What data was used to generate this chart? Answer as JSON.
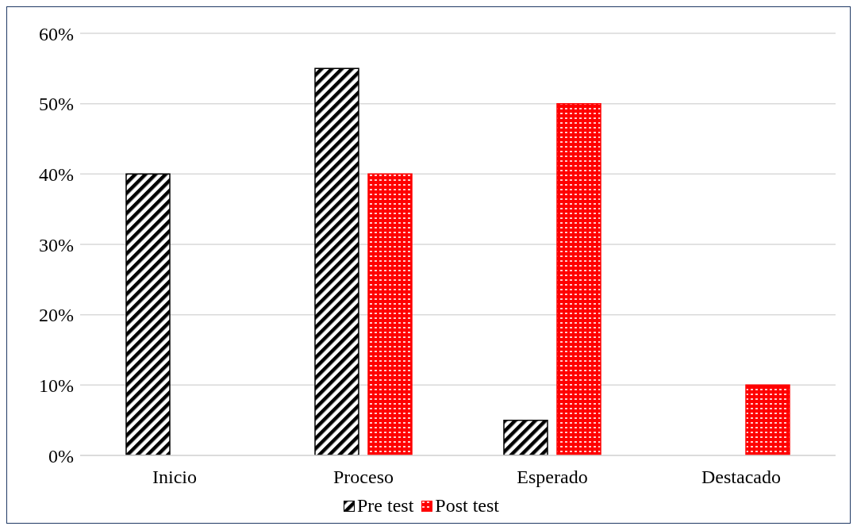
{
  "chart_data": {
    "type": "bar",
    "categories": [
      "Inicio",
      "Proceso",
      "Esperado",
      "Destacado"
    ],
    "series": [
      {
        "name": "Pre test",
        "color": "#000000",
        "values": [
          40,
          55,
          5,
          0
        ]
      },
      {
        "name": "Post test",
        "color": "#ff0000",
        "values": [
          0,
          40,
          50,
          10
        ]
      }
    ],
    "ylim": [
      0,
      60
    ],
    "yticks": [
      {
        "value": 0,
        "label": "0%"
      },
      {
        "value": 10,
        "label": "10%"
      },
      {
        "value": 20,
        "label": "20%"
      },
      {
        "value": 30,
        "label": "30%"
      },
      {
        "value": 40,
        "label": "40%"
      },
      {
        "value": 50,
        "label": "50%"
      },
      {
        "value": 60,
        "label": "60%"
      }
    ],
    "grid": "y",
    "legend": "bottom"
  }
}
